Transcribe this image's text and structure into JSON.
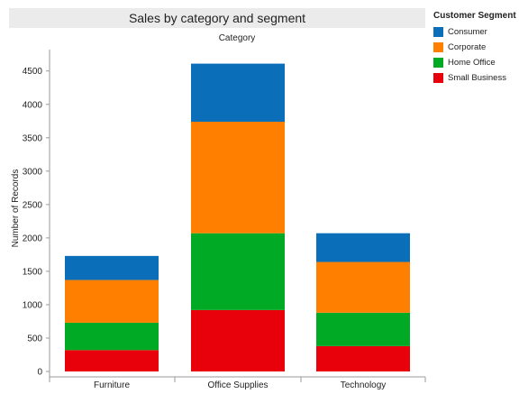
{
  "chart_data": {
    "type": "bar",
    "stacked": true,
    "title": "Sales by category and segment",
    "column_header": "Category",
    "xlabel": "",
    "ylabel": "Number of Records",
    "ylim": [
      0,
      4800
    ],
    "yticks": [
      0,
      500,
      1000,
      1500,
      2000,
      2500,
      3000,
      3500,
      4000,
      4500
    ],
    "grid": false,
    "legend_title": "Customer Segment",
    "legend_position": "right",
    "categories": [
      "Furniture",
      "Office Supplies",
      "Technology"
    ],
    "series": [
      {
        "name": "Small Business",
        "color": "#e8000b",
        "values": [
          320,
          920,
          380
        ]
      },
      {
        "name": "Home Office",
        "color": "#00aa25",
        "values": [
          410,
          1150,
          500
        ]
      },
      {
        "name": "Corporate",
        "color": "#ff7f00",
        "values": [
          640,
          1670,
          760
        ]
      },
      {
        "name": "Consumer",
        "color": "#0a6fb8",
        "values": [
          360,
          870,
          430
        ]
      }
    ],
    "legend_order": [
      "Consumer",
      "Corporate",
      "Home Office",
      "Small Business"
    ]
  }
}
